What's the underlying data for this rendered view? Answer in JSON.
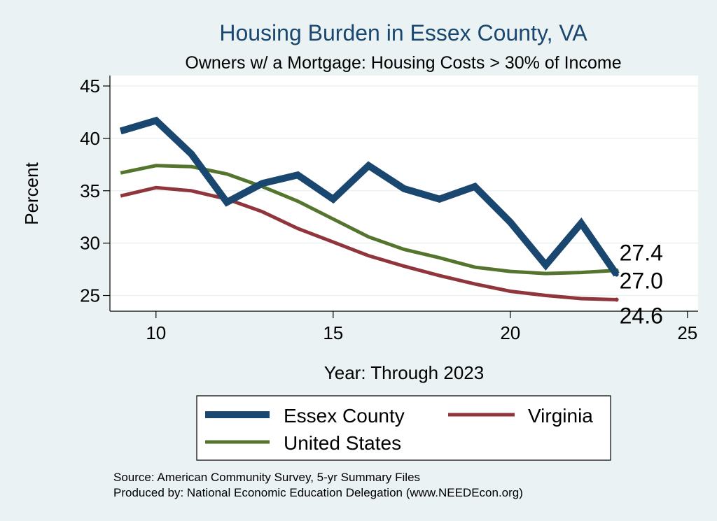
{
  "colors": {
    "essex": "#1a476f",
    "virginia": "#90353b",
    "us": "#55752f",
    "title": "#1a476f",
    "background": "#eaf2f3",
    "plot_background": "#ffffff"
  },
  "chart_data": {
    "type": "line",
    "title": "Housing Burden in Essex County, VA",
    "subtitle": "Owners w/ a Mortgage: Housing Costs > 30% of Income",
    "xlabel": "Year: Through 2023",
    "ylabel": "Percent",
    "xlim": [
      8.7,
      25.3
    ],
    "ylim": [
      23.5,
      46.0
    ],
    "x_ticks": [
      10,
      15,
      20,
      25
    ],
    "y_ticks": [
      25,
      30,
      35,
      40,
      45
    ],
    "grid": true,
    "legend_position": "bottom",
    "x": [
      9,
      10,
      11,
      12,
      13,
      14,
      15,
      16,
      17,
      18,
      19,
      20,
      21,
      22,
      23
    ],
    "series": [
      {
        "name": "Essex County",
        "color_key": "essex",
        "width": 10,
        "end_label": "27.0",
        "values": [
          40.7,
          41.7,
          38.5,
          33.9,
          35.7,
          36.5,
          34.2,
          37.4,
          35.2,
          34.2,
          35.4,
          32.0,
          27.9,
          31.9,
          27.0
        ]
      },
      {
        "name": "Virginia",
        "color_key": "virginia",
        "width": 5,
        "end_label": "24.6",
        "values": [
          34.5,
          35.3,
          35.0,
          34.2,
          33.0,
          31.4,
          30.1,
          28.8,
          27.8,
          26.9,
          26.1,
          25.4,
          25.0,
          24.7,
          24.6
        ]
      },
      {
        "name": "United States",
        "color_key": "us",
        "width": 5,
        "end_label": "27.4",
        "values": [
          36.7,
          37.4,
          37.3,
          36.6,
          35.4,
          34.0,
          32.3,
          30.6,
          29.4,
          28.6,
          27.7,
          27.3,
          27.1,
          27.2,
          27.4
        ]
      }
    ]
  },
  "footer": {
    "source": "Source: American Community Survey, 5-yr Summary Files",
    "produced": "Produced by: National Economic Education Delegation (www.NEEDEcon.org)"
  }
}
